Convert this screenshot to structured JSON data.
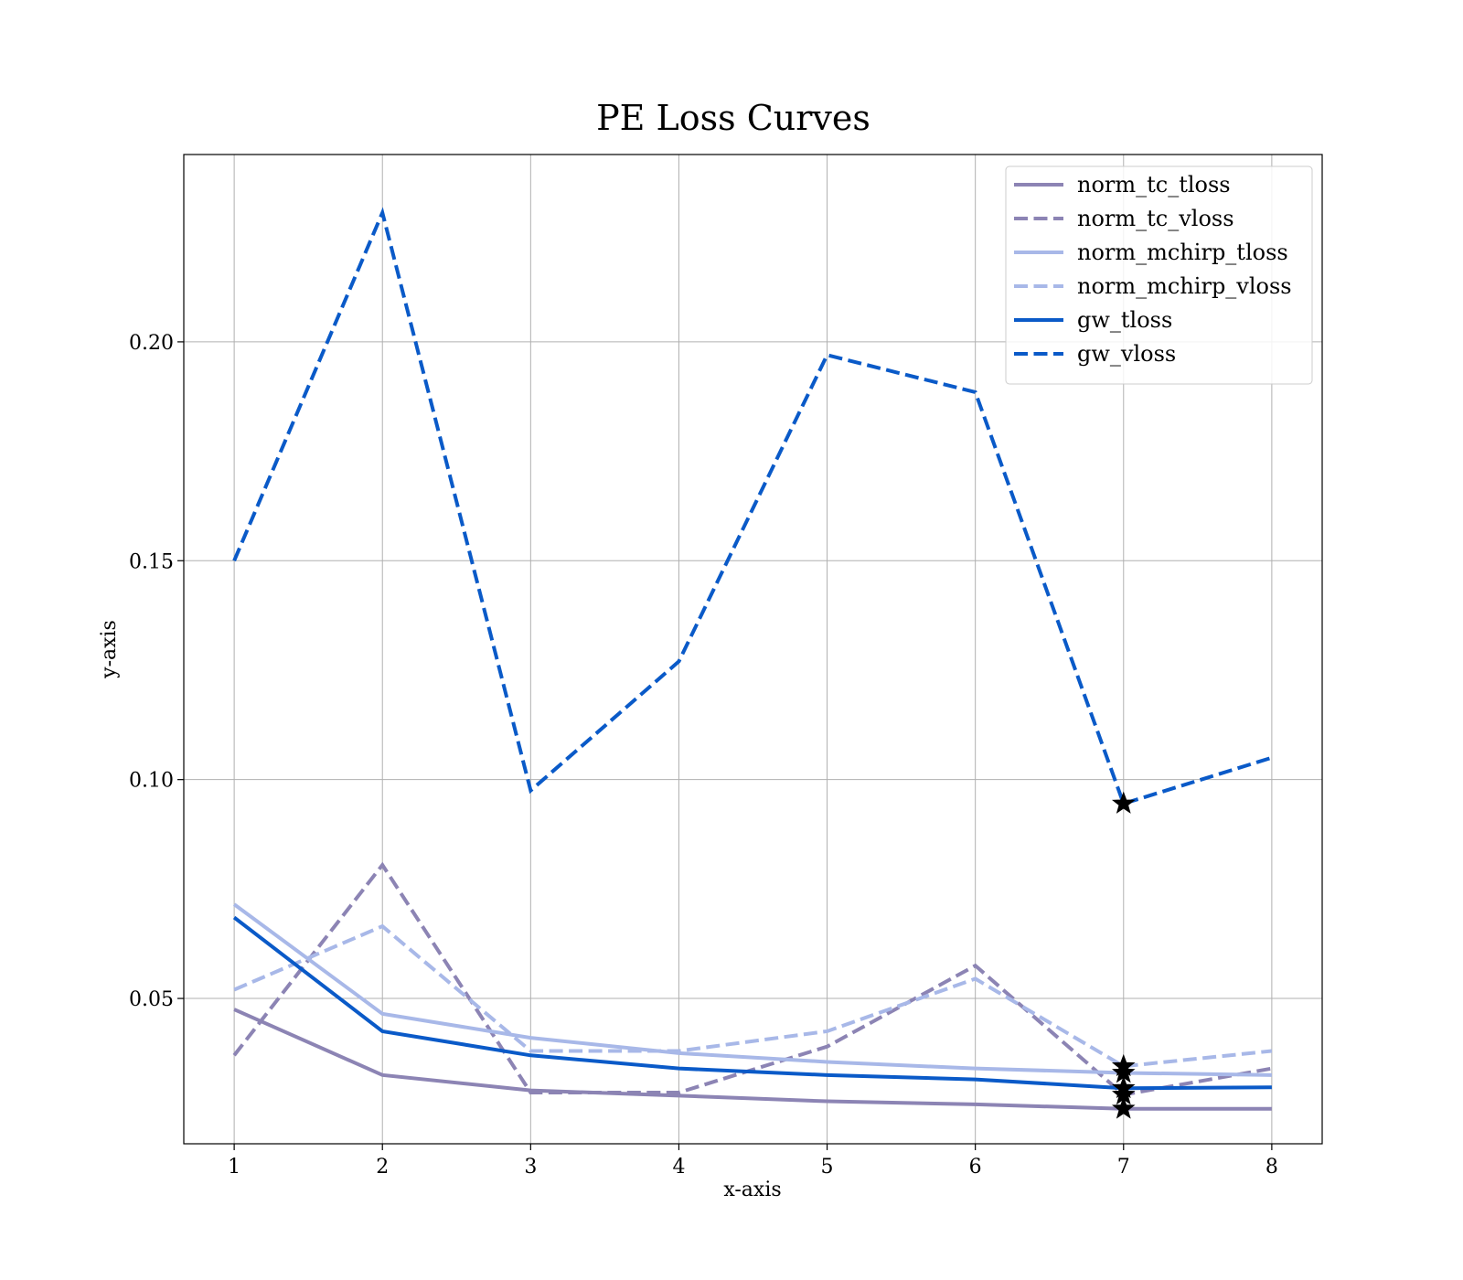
{
  "chart_data": {
    "type": "line",
    "title": "PE Loss Curves",
    "xlabel": "x-axis",
    "ylabel": "y-axis",
    "x": [
      1,
      2,
      3,
      4,
      5,
      6,
      7,
      8
    ],
    "xlim": [
      0.66,
      8.34
    ],
    "ylim": [
      0.0168,
      0.2428
    ],
    "xticks": [
      1,
      2,
      3,
      4,
      5,
      6,
      7,
      8
    ],
    "yticks": [
      0.05,
      0.1,
      0.15,
      0.2
    ],
    "ytick_labels": [
      "0.05",
      "0.10",
      "0.15",
      "0.20"
    ],
    "grid": true,
    "legend_position": "top-right",
    "series": [
      {
        "name": "norm_tc_tloss",
        "color": "#8c84b4",
        "style": "solid",
        "values": [
          0.0475,
          0.0325,
          0.029,
          0.0278,
          0.0265,
          0.0258,
          0.0248,
          0.0248
        ]
      },
      {
        "name": "norm_tc_vloss",
        "color": "#8c84b4",
        "style": "dashed",
        "values": [
          0.037,
          0.0805,
          0.0285,
          0.0285,
          0.039,
          0.0575,
          0.028,
          0.034
        ]
      },
      {
        "name": "norm_mchirp_tloss",
        "color": "#a8b8e8",
        "style": "solid",
        "values": [
          0.0715,
          0.0465,
          0.041,
          0.0375,
          0.0355,
          0.034,
          0.033,
          0.0325
        ]
      },
      {
        "name": "norm_mchirp_vloss",
        "color": "#a8b8e8",
        "style": "dashed",
        "values": [
          0.052,
          0.0665,
          0.038,
          0.038,
          0.0425,
          0.0545,
          0.0345,
          0.038
        ]
      },
      {
        "name": "gw_tloss",
        "color": "#0a5ac8",
        "style": "solid",
        "values": [
          0.0685,
          0.0425,
          0.037,
          0.034,
          0.0325,
          0.0315,
          0.0295,
          0.0297
        ]
      },
      {
        "name": "gw_vloss",
        "color": "#0a5ac8",
        "style": "dashed",
        "values": [
          0.15,
          0.2295,
          0.0975,
          0.127,
          0.197,
          0.1885,
          0.0945,
          0.105
        ]
      }
    ],
    "markers": [
      {
        "series": "norm_tc_tloss",
        "x": 7,
        "symbol": "star"
      },
      {
        "series": "norm_tc_vloss",
        "x": 7,
        "symbol": "star"
      },
      {
        "series": "norm_mchirp_tloss",
        "x": 7,
        "symbol": "star"
      },
      {
        "series": "norm_mchirp_vloss",
        "x": 7,
        "symbol": "star"
      },
      {
        "series": "gw_tloss",
        "x": 7,
        "symbol": "star"
      },
      {
        "series": "gw_vloss",
        "x": 7,
        "symbol": "star"
      }
    ]
  }
}
